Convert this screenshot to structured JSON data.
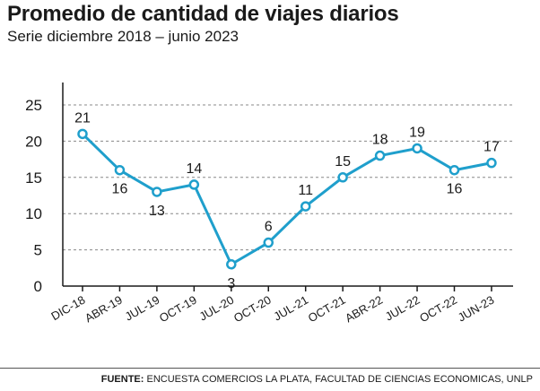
{
  "header": {
    "title": "Promedio de cantidad de viajes diarios",
    "subtitle": "Serie diciembre 2018 – junio 2023"
  },
  "footer": {
    "label": "FUENTE:",
    "text": "ENCUESTA COMERCIOS LA PLATA,  FACULTAD DE CIENCIAS ECONOMICAS, UNLP"
  },
  "colors": {
    "line": "#1f9fcc",
    "marker_fill": "#ffffff",
    "grid": "#888888",
    "axis": "#1a1a1a",
    "text": "#1a1a1a"
  },
  "chart_data": {
    "type": "line",
    "title": "Promedio de cantidad de viajes diarios",
    "subtitle": "Serie diciembre 2018 – junio 2023",
    "categories": [
      "DIC-18",
      "ABR-19",
      "JUL-19",
      "OCT-19",
      "JUL-20",
      "OCT-20",
      "JUL-21",
      "OCT-21",
      "ABR-22",
      "JUL-22",
      "OCT-22",
      "JUN-23"
    ],
    "values": [
      21,
      16,
      13,
      14,
      3,
      6,
      11,
      15,
      18,
      19,
      16,
      17
    ],
    "label_positions": [
      "above",
      "below",
      "below",
      "above",
      "below",
      "above",
      "above",
      "above",
      "above",
      "above",
      "below",
      "above"
    ],
    "yticks": [
      0,
      5,
      10,
      15,
      20,
      25
    ],
    "ylim": [
      0,
      25
    ],
    "xlabel": "",
    "ylabel": "",
    "grid": "horizontal-dashed",
    "legend": "none"
  }
}
